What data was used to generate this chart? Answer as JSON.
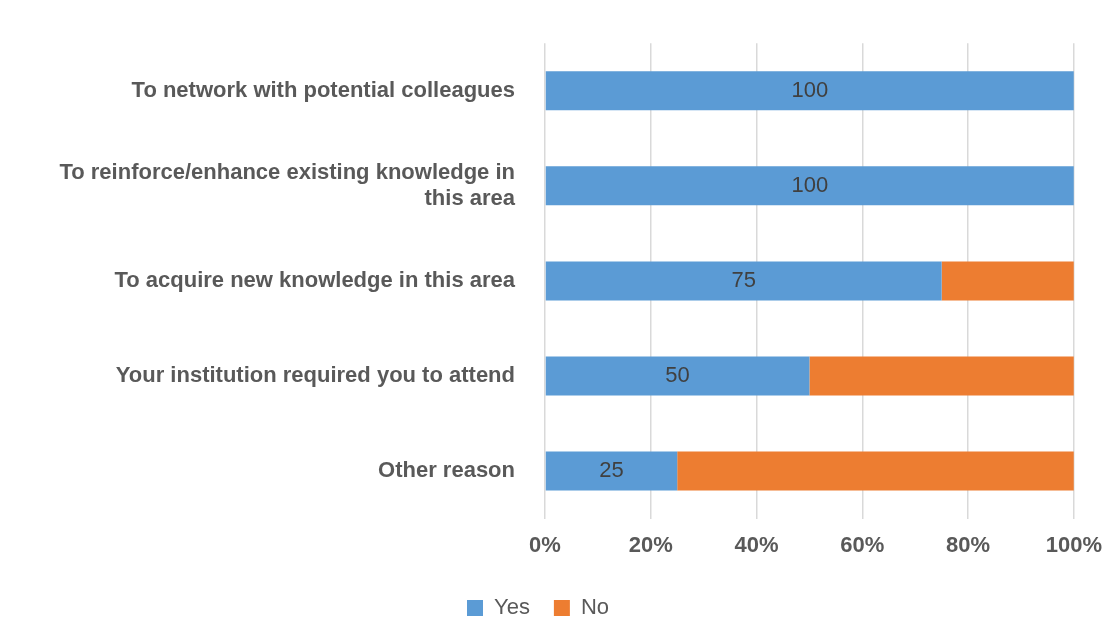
{
  "chart_data": {
    "type": "bar",
    "orientation": "horizontal",
    "stacked": true,
    "categories": [
      "To network with potential colleagues",
      "To reinforce/enhance existing knowledge in this area",
      "To acquire new knowledge in this area",
      "Your institution required you to attend",
      "Other reason"
    ],
    "series": [
      {
        "name": "Yes",
        "color": "#5b9bd5",
        "values": [
          100,
          100,
          75,
          50,
          25
        ],
        "value_labels": [
          "100",
          "100",
          "75",
          "50",
          "25"
        ]
      },
      {
        "name": "No",
        "color": "#ed7d31",
        "values": [
          0,
          0,
          25,
          50,
          75
        ]
      }
    ],
    "xlim": [
      0,
      100
    ],
    "xticks": [
      {
        "value": 0,
        "label": "0%"
      },
      {
        "value": 20,
        "label": "20%"
      },
      {
        "value": 40,
        "label": "40%"
      },
      {
        "value": 60,
        "label": "60%"
      },
      {
        "value": 80,
        "label": "80%"
      },
      {
        "value": 100,
        "label": "100%"
      }
    ],
    "grid": "x",
    "legend": "bottom"
  }
}
